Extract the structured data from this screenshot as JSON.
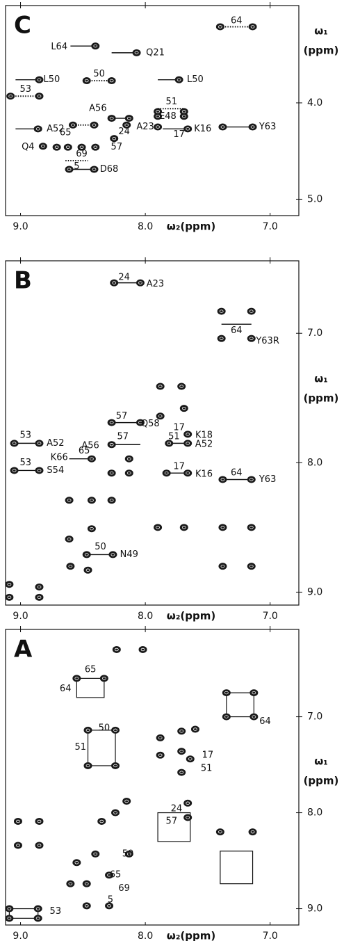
{
  "chart_data": [
    {
      "type": "scatter",
      "panel_label": "C",
      "x_label": "ω₂(ppm)",
      "y_label": [
        "ω₁",
        "(ppm)"
      ],
      "xlim": [
        9.12,
        6.77
      ],
      "ylim": [
        2.99,
        5.17
      ],
      "xticks": [
        {
          "value": 9,
          "label": "9.0"
        },
        {
          "value": 8,
          "label": "8.0"
        },
        {
          "value": 7,
          "label": "7.0"
        }
      ],
      "yticks": [
        {
          "value": 4,
          "label": "4.0"
        },
        {
          "value": 5,
          "label": "5.0"
        }
      ],
      "series": [
        {
          "color": "#1a1a1a",
          "x": [
            8.4,
            8.07,
            7.4,
            7.14,
            8.85,
            7.73,
            8.47,
            8.27,
            9.08,
            8.85,
            8.86,
            8.27,
            8.13,
            7.9,
            7.69,
            7.9,
            7.69,
            7.66,
            7.9,
            8.15,
            8.58,
            8.41,
            8.25,
            7.38,
            7.14,
            8.82,
            8.71,
            8.62,
            8.51,
            8.4,
            8.61,
            8.41
          ],
          "values": [
            3.41,
            3.48,
            3.21,
            3.21,
            3.76,
            3.76,
            3.77,
            3.77,
            3.93,
            3.93,
            4.27,
            4.16,
            4.16,
            4.09,
            4.09,
            4.14,
            4.14,
            4.27,
            4.25,
            4.23,
            4.23,
            4.23,
            4.37,
            4.25,
            4.25,
            4.45,
            4.46,
            4.46,
            4.46,
            4.46,
            4.69,
            4.69
          ]
        }
      ],
      "annotations": [
        {
          "text": "L64",
          "x": 8.69,
          "y": 3.42
        },
        {
          "text": "Q21",
          "x": 7.92,
          "y": 3.48
        },
        {
          "text": "64",
          "x": 7.27,
          "y": 3.15
        },
        {
          "text": "L50",
          "x": 8.75,
          "y": 3.76
        },
        {
          "text": "L50",
          "x": 7.6,
          "y": 3.76
        },
        {
          "text": "50",
          "x": 8.37,
          "y": 3.7
        },
        {
          "text": "53",
          "x": 8.96,
          "y": 3.86
        },
        {
          "text": "A52",
          "x": 8.72,
          "y": 4.27
        },
        {
          "text": "A56",
          "x": 8.38,
          "y": 4.06
        },
        {
          "text": "E48",
          "x": 7.82,
          "y": 4.14
        },
        {
          "text": "51",
          "x": 7.79,
          "y": 3.99
        },
        {
          "text": "K16",
          "x": 7.54,
          "y": 4.27
        },
        {
          "text": "17",
          "x": 7.73,
          "y": 4.33
        },
        {
          "text": "A23",
          "x": 8.0,
          "y": 4.25
        },
        {
          "text": "24",
          "x": 8.17,
          "y": 4.3
        },
        {
          "text": "65",
          "x": 8.64,
          "y": 4.31
        },
        {
          "text": "57",
          "x": 8.23,
          "y": 4.46
        },
        {
          "text": "Q4",
          "x": 8.94,
          "y": 4.46
        },
        {
          "text": "69",
          "x": 8.51,
          "y": 4.53
        },
        {
          "text": "5",
          "x": 8.55,
          "y": 4.66
        },
        {
          "text": "D68",
          "x": 8.29,
          "y": 4.69
        },
        {
          "text": "Y63",
          "x": 7.02,
          "y": 4.25
        }
      ],
      "lines": [
        {
          "x": [
            8.6,
            8.4
          ],
          "y": [
            3.41,
            3.41
          ],
          "style": "solid"
        },
        {
          "x": [
            8.27,
            8.07
          ],
          "y": [
            3.48,
            3.48
          ],
          "style": "solid"
        },
        {
          "x": [
            7.4,
            7.14
          ],
          "y": [
            3.21,
            3.21
          ],
          "style": "dotted"
        },
        {
          "x": [
            9.04,
            8.85
          ],
          "y": [
            3.76,
            3.76
          ],
          "style": "solid"
        },
        {
          "x": [
            7.9,
            7.73
          ],
          "y": [
            3.76,
            3.76
          ],
          "style": "solid"
        },
        {
          "x": [
            8.47,
            8.27
          ],
          "y": [
            3.77,
            3.77
          ],
          "style": "dotted"
        },
        {
          "x": [
            9.08,
            8.85
          ],
          "y": [
            3.93,
            3.93
          ],
          "style": "dotted"
        },
        {
          "x": [
            9.04,
            8.86
          ],
          "y": [
            4.27,
            4.27
          ],
          "style": "solid"
        },
        {
          "x": [
            8.27,
            8.13
          ],
          "y": [
            4.16,
            4.16
          ],
          "style": "solid"
        },
        {
          "x": [
            7.9,
            7.69
          ],
          "y": [
            4.06,
            4.06
          ],
          "style": "dotted"
        },
        {
          "x": [
            7.86,
            7.66
          ],
          "y": [
            4.27,
            4.27
          ],
          "style": "solid"
        },
        {
          "x": [
            8.58,
            8.41
          ],
          "y": [
            4.23,
            4.23
          ],
          "style": "dotted"
        },
        {
          "x": [
            7.38,
            7.14
          ],
          "y": [
            4.25,
            4.25
          ],
          "style": "solid"
        },
        {
          "x": [
            8.61,
            8.41
          ],
          "y": [
            4.69,
            4.69
          ],
          "style": "solid"
        },
        {
          "x": [
            8.64,
            8.46
          ],
          "y": [
            4.6,
            4.6
          ],
          "style": "dotted"
        }
      ]
    },
    {
      "type": "scatter",
      "panel_label": "B",
      "x_label": "ω₂(ppm)",
      "y_label": [
        "ω₁",
        "(ppm)"
      ],
      "xlim": [
        9.12,
        6.77
      ],
      "ylim": [
        6.44,
        9.1
      ],
      "xticks": [
        {
          "value": 9,
          "label": "9.0"
        },
        {
          "value": 8,
          "label": "8.0"
        },
        {
          "value": 7,
          "label": "7.0"
        }
      ],
      "yticks": [
        {
          "value": 7,
          "label": "7.0"
        },
        {
          "value": 8,
          "label": "8.0"
        },
        {
          "value": 9,
          "label": "9.0"
        }
      ],
      "series": [
        {
          "color": "#1a1a1a",
          "x": [
            8.25,
            8.04,
            7.39,
            7.15,
            7.39,
            7.15,
            9.09,
            9.09,
            8.85,
            8.85,
            8.6,
            8.46,
            8.61,
            8.43,
            8.27,
            8.27,
            8.43,
            8.61,
            8.13,
            8.13,
            7.88,
            7.71,
            7.88,
            7.69,
            8.47,
            8.26,
            9.05,
            8.85,
            9.05,
            8.85,
            7.38,
            7.15,
            7.83,
            7.66,
            7.66,
            7.81,
            7.66,
            8.27,
            8.04,
            8.27,
            8.43,
            7.15,
            7.38,
            7.38,
            7.15,
            7.9,
            7.69
          ],
          "values": [
            6.61,
            6.61,
            6.83,
            6.83,
            7.04,
            7.04,
            8.94,
            9.04,
            8.96,
            9.04,
            8.8,
            8.83,
            8.59,
            8.51,
            8.29,
            8.08,
            8.29,
            8.29,
            8.08,
            7.97,
            7.41,
            7.41,
            7.64,
            7.58,
            8.71,
            8.71,
            7.85,
            7.85,
            8.06,
            8.06,
            8.13,
            8.13,
            8.08,
            8.08,
            7.78,
            7.85,
            7.85,
            7.69,
            7.69,
            7.86,
            7.97,
            8.5,
            8.5,
            8.8,
            8.8,
            8.5,
            8.5
          ]
        }
      ],
      "annotations": [
        {
          "text": "24",
          "x": 8.17,
          "y": 6.57
        },
        {
          "text": "A23",
          "x": 7.92,
          "y": 6.62
        },
        {
          "text": "64",
          "x": 7.27,
          "y": 6.98
        },
        {
          "text": "Y63R",
          "x": 7.02,
          "y": 7.06
        },
        {
          "text": "50",
          "x": 8.36,
          "y": 8.65
        },
        {
          "text": "N49",
          "x": 8.13,
          "y": 8.71
        },
        {
          "text": "53",
          "x": 8.96,
          "y": 7.79
        },
        {
          "text": "A52",
          "x": 8.72,
          "y": 7.85
        },
        {
          "text": "53",
          "x": 8.96,
          "y": 8.0
        },
        {
          "text": "S54",
          "x": 8.72,
          "y": 8.06
        },
        {
          "text": "64",
          "x": 7.27,
          "y": 8.08
        },
        {
          "text": "Y63",
          "x": 7.02,
          "y": 8.13
        },
        {
          "text": "17",
          "x": 7.73,
          "y": 8.03
        },
        {
          "text": "K16",
          "x": 7.53,
          "y": 8.09
        },
        {
          "text": "17",
          "x": 7.73,
          "y": 7.73
        },
        {
          "text": "K18",
          "x": 7.53,
          "y": 7.79
        },
        {
          "text": "51",
          "x": 7.77,
          "y": 7.8
        },
        {
          "text": "A52",
          "x": 7.53,
          "y": 7.86
        },
        {
          "text": "57",
          "x": 8.19,
          "y": 7.64
        },
        {
          "text": "Q58",
          "x": 7.96,
          "y": 7.7
        },
        {
          "text": "A56",
          "x": 8.44,
          "y": 7.87
        },
        {
          "text": "57",
          "x": 8.18,
          "y": 7.8
        },
        {
          "text": "K66",
          "x": 8.69,
          "y": 7.96
        },
        {
          "text": "65",
          "x": 8.49,
          "y": 7.91
        }
      ],
      "lines": [
        {
          "x": [
            8.25,
            8.04
          ],
          "y": [
            6.61,
            6.61
          ],
          "style": "solid"
        },
        {
          "x": [
            7.39,
            7.15
          ],
          "y": [
            6.93,
            6.93
          ],
          "style": "solid"
        },
        {
          "x": [
            8.47,
            8.26
          ],
          "y": [
            8.71,
            8.71
          ],
          "style": "solid"
        },
        {
          "x": [
            9.05,
            8.85
          ],
          "y": [
            7.85,
            7.85
          ],
          "style": "solid"
        },
        {
          "x": [
            9.05,
            8.85
          ],
          "y": [
            8.06,
            8.06
          ],
          "style": "solid"
        },
        {
          "x": [
            7.38,
            7.15
          ],
          "y": [
            8.13,
            8.13
          ],
          "style": "solid"
        },
        {
          "x": [
            7.83,
            7.66
          ],
          "y": [
            8.08,
            8.08
          ],
          "style": "solid"
        },
        {
          "x": [
            7.81,
            7.66
          ],
          "y": [
            7.85,
            7.85
          ],
          "style": "solid"
        },
        {
          "x": [
            8.27,
            8.04
          ],
          "y": [
            7.69,
            7.69
          ],
          "style": "solid"
        },
        {
          "x": [
            8.27,
            8.04
          ],
          "y": [
            7.86,
            7.86
          ],
          "style": "solid"
        },
        {
          "x": [
            8.61,
            8.43
          ],
          "y": [
            7.97,
            7.97
          ],
          "style": "solid"
        }
      ]
    },
    {
      "type": "scatter",
      "panel_label": "A",
      "x_label": "ω₂(ppm)",
      "y_label": [
        "ω₁",
        "(ppm)"
      ],
      "xlim": [
        9.12,
        6.77
      ],
      "ylim": [
        6.09,
        9.17
      ],
      "xticks": [
        {
          "value": 9,
          "label": "9.0"
        },
        {
          "value": 8,
          "label": "8.0"
        },
        {
          "value": 7,
          "label": "7.0"
        }
      ],
      "yticks": [
        {
          "value": 7,
          "label": "7.0"
        },
        {
          "value": 8,
          "label": "8.0"
        },
        {
          "value": 9,
          "label": "9.0"
        }
      ],
      "series": [
        {
          "color": "#1a1a1a",
          "x": [
            8.23,
            8.02,
            7.35,
            7.13,
            7.35,
            7.13,
            8.55,
            8.33,
            8.46,
            8.24,
            8.46,
            8.24,
            7.71,
            7.6,
            7.88,
            7.71,
            7.88,
            7.64,
            7.71,
            9.02,
            8.85,
            9.02,
            8.85,
            7.4,
            7.14,
            8.35,
            8.24,
            8.15,
            8.4,
            8.55,
            8.6,
            8.47,
            8.29,
            8.13,
            9.09,
            9.09,
            8.86,
            8.86,
            8.47,
            8.29,
            7.66,
            7.66
          ],
          "values": [
            6.3,
            6.3,
            6.75,
            6.75,
            7.0,
            7.0,
            6.6,
            6.6,
            7.14,
            7.14,
            7.51,
            7.51,
            7.15,
            7.13,
            7.22,
            7.36,
            7.4,
            7.44,
            7.58,
            8.09,
            8.09,
            8.34,
            8.34,
            8.2,
            8.2,
            8.09,
            8.0,
            7.88,
            8.43,
            8.52,
            8.74,
            8.74,
            8.65,
            8.43,
            9.0,
            9.1,
            9.0,
            9.1,
            8.97,
            8.97,
            7.9,
            8.05
          ]
        }
      ],
      "annotations": [
        {
          "text": "65",
          "x": 8.44,
          "y": 6.51
        },
        {
          "text": "64",
          "x": 8.64,
          "y": 6.71
        },
        {
          "text": "50",
          "x": 8.33,
          "y": 7.12
        },
        {
          "text": "51",
          "x": 8.52,
          "y": 7.32
        },
        {
          "text": "17",
          "x": 7.5,
          "y": 7.4
        },
        {
          "text": "51",
          "x": 7.51,
          "y": 7.54
        },
        {
          "text": "24",
          "x": 7.75,
          "y": 7.96
        },
        {
          "text": "57",
          "x": 7.79,
          "y": 8.09
        },
        {
          "text": "50",
          "x": 8.14,
          "y": 8.43
        },
        {
          "text": "65",
          "x": 8.24,
          "y": 8.65
        },
        {
          "text": "69",
          "x": 8.17,
          "y": 8.79
        },
        {
          "text": "5",
          "x": 8.28,
          "y": 8.91
        },
        {
          "text": "64",
          "x": 7.04,
          "y": 7.05
        },
        {
          "text": "53",
          "x": 8.72,
          "y": 9.03
        }
      ],
      "boxes": [
        {
          "x": [
            8.55,
            8.33
          ],
          "y": [
            6.6,
            6.8
          ]
        },
        {
          "x": [
            8.46,
            8.24
          ],
          "y": [
            7.14,
            7.51
          ]
        },
        {
          "x": [
            7.35,
            7.13
          ],
          "y": [
            6.75,
            7.0
          ]
        },
        {
          "x": [
            7.9,
            7.64
          ],
          "y": [
            8.0,
            8.3
          ]
        },
        {
          "x": [
            7.4,
            7.14
          ],
          "y": [
            8.4,
            8.74
          ]
        },
        {
          "x": [
            9.09,
            8.86
          ],
          "y": [
            9.0,
            9.1
          ]
        }
      ]
    }
  ]
}
